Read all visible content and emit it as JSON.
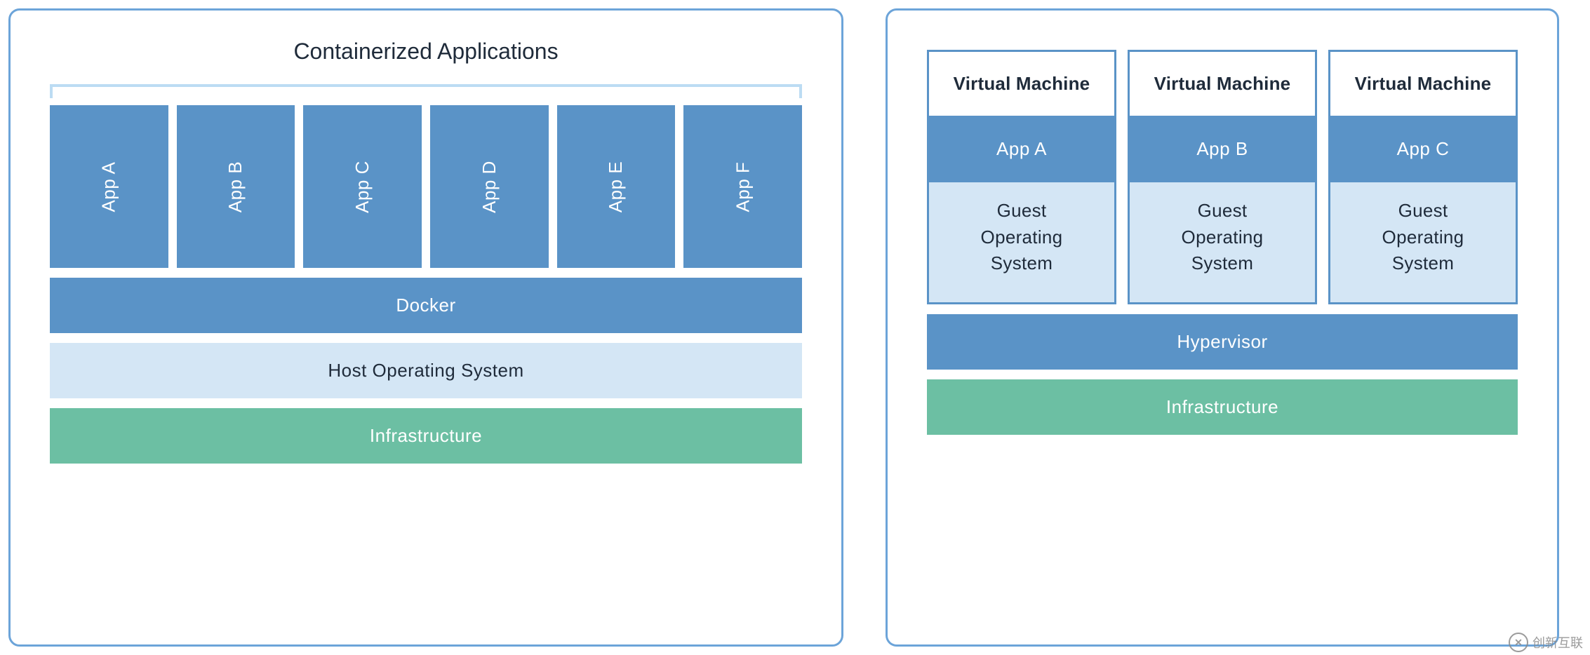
{
  "colors": {
    "panel_border": "#6ca4d9",
    "blue_fill": "#5a93c7",
    "lightblue_fill": "#d4e6f5",
    "green_fill": "#6cbfa3",
    "white_text": "#ffffff",
    "dark_text": "#1f2b3a",
    "bracket": "#bcdcf3",
    "vm_border": "#5a93c7",
    "watermark_text": "#8a8a8a"
  },
  "typography": {
    "title_fontsize": 32,
    "body_fontsize": 26,
    "vm_title_weight": 700
  },
  "left": {
    "title": "Containerized Applications",
    "apps": [
      "App A",
      "App B",
      "App C",
      "App D",
      "App E",
      "App F"
    ],
    "layers": [
      {
        "label": "Docker",
        "fill": "blue_fill",
        "text": "white_text"
      },
      {
        "label": "Host Operating System",
        "fill": "lightblue_fill",
        "text": "dark_text"
      },
      {
        "label": "Infrastructure",
        "fill": "green_fill",
        "text": "white_text"
      }
    ]
  },
  "right": {
    "vms": [
      {
        "title": "Virtual Machine",
        "app": "App A",
        "guest": "Guest Operating System"
      },
      {
        "title": "Virtual Machine",
        "app": "App B",
        "guest": "Guest Operating System"
      },
      {
        "title": "Virtual Machine",
        "app": "App C",
        "guest": "Guest Operating System"
      }
    ],
    "layers": [
      {
        "label": "Hypervisor",
        "fill": "blue_fill",
        "text": "white_text"
      },
      {
        "label": "Infrastructure",
        "fill": "green_fill",
        "text": "white_text"
      }
    ]
  },
  "watermark": "创新互联"
}
